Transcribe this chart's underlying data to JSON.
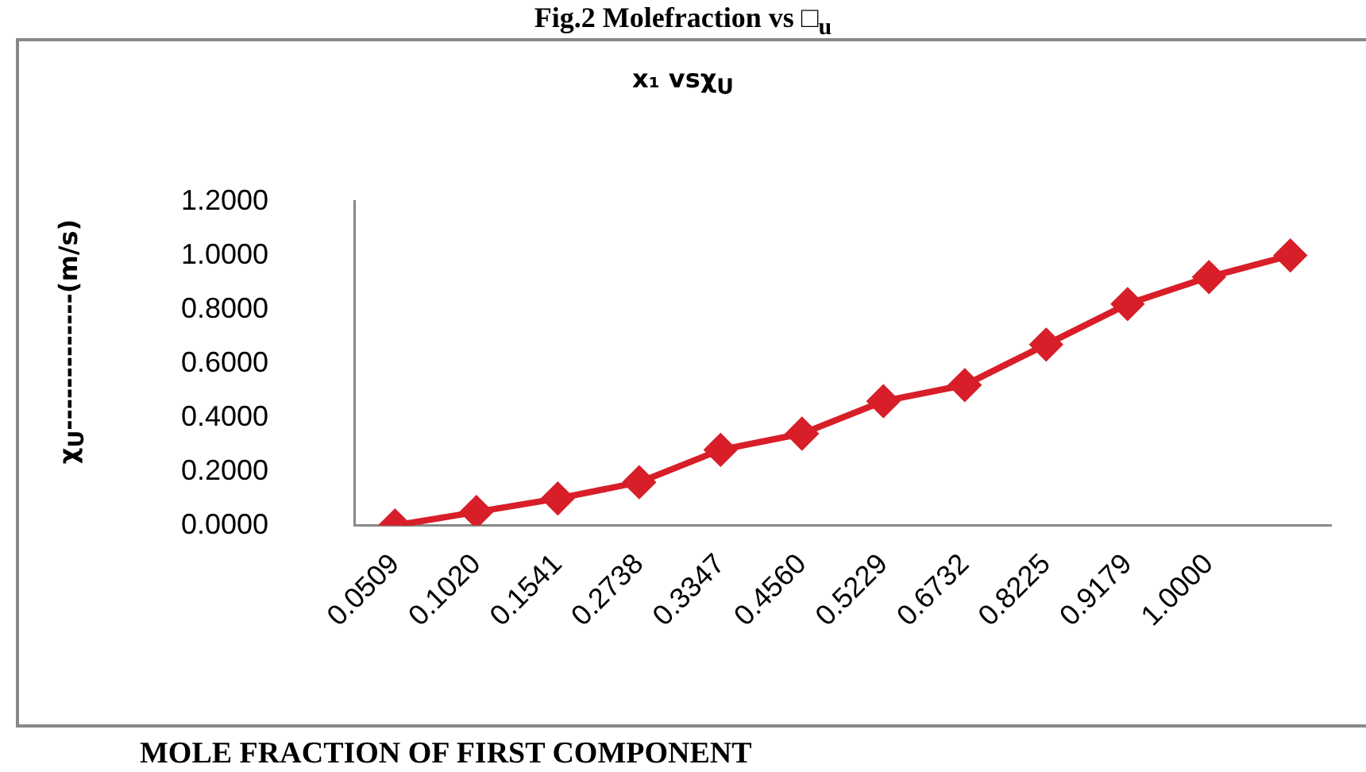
{
  "chart_data": {
    "type": "line",
    "title": "Fig.2 Molefraction vs □$_{u}$",
    "subtitle": "x₁ vsχ$_{U}$",
    "ylabel": "χ$_{U}$-------------(m/s)",
    "xlabel": "MOLE FRACTION OF FIRST COMPONENT",
    "categories": [
      "0.0509",
      "0.1020",
      "0.1541",
      "0.2738",
      "0.3347",
      "0.4560",
      "0.5229",
      "0.6732",
      "0.8225",
      "0.9179",
      "1.0000",
      null
    ],
    "series": [
      {
        "color": "#d81e28",
        "values": [
          0.0,
          0.05,
          0.1,
          0.16,
          0.28,
          0.34,
          0.46,
          0.52,
          0.67,
          0.82,
          0.92,
          1.0
        ]
      }
    ],
    "ylim": [
      0,
      1.2
    ],
    "yticks": [
      {
        "value": 0,
        "label": "0.0000"
      },
      {
        "value": 0.2,
        "label": "0.2000"
      },
      {
        "value": 0.4,
        "label": "0.4000"
      },
      {
        "value": 0.6,
        "label": "0.6000"
      },
      {
        "value": 0.8,
        "label": "0.8000"
      },
      {
        "value": 1.0,
        "label": "1.0000"
      },
      {
        "value": 1.2,
        "label": "1.2000"
      }
    ],
    "grid": false,
    "legend": false,
    "marker": "diamond",
    "line_style": "solid"
  }
}
